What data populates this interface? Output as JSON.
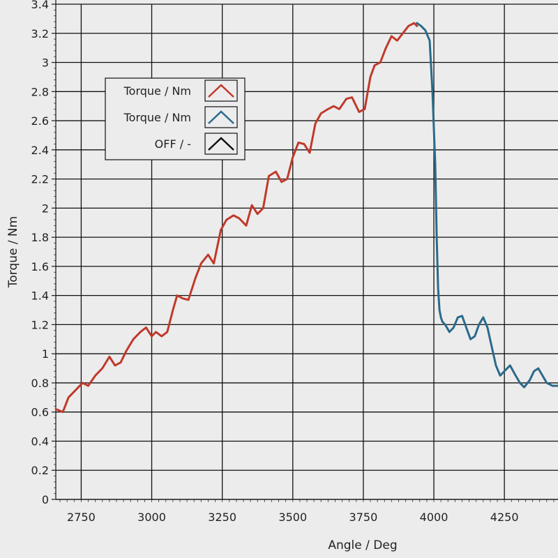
{
  "chart_data": {
    "type": "line",
    "xlabel": "Angle / Deg",
    "ylabel": "Torque / Nm",
    "xlim": [
      2660,
      4440
    ],
    "ylim": [
      0,
      3.4
    ],
    "x_ticks": [
      2750,
      3000,
      3250,
      3500,
      3750,
      4000,
      4250
    ],
    "y_ticks": [
      0,
      0.2,
      0.4,
      0.6,
      0.8,
      1,
      1.2,
      1.4,
      1.6,
      1.8,
      2,
      2.2,
      2.4,
      2.6,
      2.8,
      3,
      3.2,
      3.4
    ],
    "grid": true,
    "legend": {
      "placement": "upper-left",
      "entries": [
        {
          "label": "Torque / Nm",
          "color": "#c0392b"
        },
        {
          "label": "Torque / Nm",
          "color": "#2a6a8c"
        },
        {
          "label": "OFF / -",
          "color": "#111111"
        }
      ]
    },
    "series": [
      {
        "color": "#c0392b",
        "x": [
          2660,
          2685,
          2705,
          2730,
          2755,
          2775,
          2800,
          2825,
          2850,
          2870,
          2890,
          2910,
          2935,
          2960,
          2980,
          3000,
          3015,
          3035,
          3055,
          3075,
          3090,
          3110,
          3130,
          3155,
          3175,
          3200,
          3220,
          3245,
          3265,
          3290,
          3310,
          3335,
          3355,
          3375,
          3395,
          3415,
          3440,
          3460,
          3480,
          3500,
          3520,
          3540,
          3560,
          3580,
          3600,
          3625,
          3645,
          3665,
          3690,
          3710,
          3735,
          3755,
          3775,
          3790,
          3810,
          3830,
          3850,
          3870,
          3890,
          3910,
          3930,
          3940
        ],
        "y": [
          0.62,
          0.6,
          0.7,
          0.75,
          0.8,
          0.78,
          0.85,
          0.9,
          0.98,
          0.92,
          0.94,
          1.02,
          1.1,
          1.15,
          1.18,
          1.12,
          1.15,
          1.12,
          1.15,
          1.3,
          1.4,
          1.38,
          1.37,
          1.52,
          1.62,
          1.68,
          1.62,
          1.85,
          1.92,
          1.95,
          1.93,
          1.88,
          2.02,
          1.96,
          2.0,
          2.22,
          2.25,
          2.18,
          2.2,
          2.35,
          2.45,
          2.44,
          2.38,
          2.58,
          2.65,
          2.68,
          2.7,
          2.68,
          2.75,
          2.76,
          2.66,
          2.68,
          2.9,
          2.98,
          3.0,
          3.1,
          3.18,
          3.15,
          3.2,
          3.25,
          3.27,
          3.25
        ]
      },
      {
        "color": "#2a6a8c",
        "x": [
          3940,
          3955,
          3970,
          3985,
          3995,
          4005,
          4010,
          4015,
          4020,
          4025,
          4030,
          4040,
          4055,
          4070,
          4085,
          4100,
          4115,
          4130,
          4145,
          4160,
          4175,
          4190,
          4205,
          4220,
          4235,
          4250,
          4270,
          4290,
          4305,
          4320,
          4340,
          4355,
          4370,
          4385,
          4400,
          4420,
          4440
        ],
        "y": [
          3.27,
          3.25,
          3.22,
          3.15,
          2.8,
          2.3,
          1.8,
          1.45,
          1.3,
          1.25,
          1.22,
          1.2,
          1.15,
          1.18,
          1.25,
          1.26,
          1.18,
          1.1,
          1.12,
          1.2,
          1.25,
          1.18,
          1.05,
          0.92,
          0.85,
          0.88,
          0.92,
          0.85,
          0.8,
          0.77,
          0.82,
          0.88,
          0.9,
          0.85,
          0.8,
          0.78,
          0.78
        ]
      }
    ]
  }
}
